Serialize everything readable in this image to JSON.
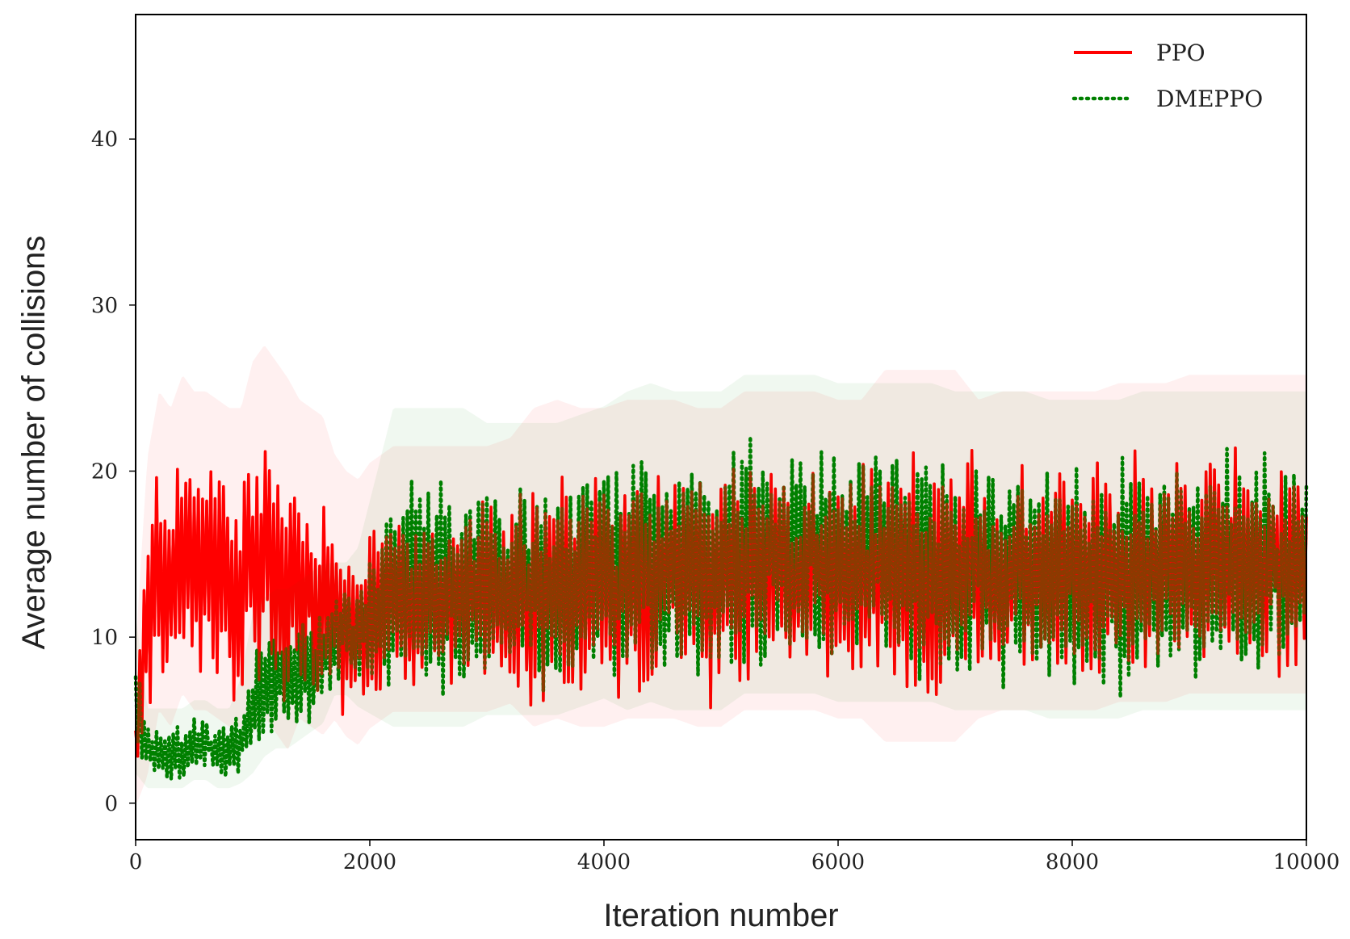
{
  "chart_data": {
    "type": "line",
    "title": "",
    "xlabel": "Iteration number",
    "ylabel": "Average number of collisions",
    "xlim": [
      0,
      10000
    ],
    "ylim": [
      -2.2,
      47.5
    ],
    "xticks": [
      0,
      2000,
      4000,
      6000,
      8000,
      10000
    ],
    "yticks": [
      0,
      10,
      20,
      30,
      40
    ],
    "grid": false,
    "legend": "top-right",
    "series": [
      {
        "name": "PPO",
        "color": "#ff0000",
        "style": "solid",
        "x": [
          0,
          100,
          200,
          300,
          400,
          500,
          600,
          700,
          800,
          900,
          1000,
          1100,
          1200,
          1300,
          1400,
          1500,
          1600,
          1700,
          1800,
          1900,
          2000,
          2200,
          2400,
          2600,
          2800,
          3000,
          3200,
          3400,
          3600,
          3800,
          4000,
          4200,
          4400,
          4600,
          4800,
          5000,
          5200,
          5400,
          5600,
          5800,
          6000,
          6200,
          6400,
          6600,
          6800,
          7000,
          7200,
          7400,
          7600,
          7800,
          8000,
          8200,
          8400,
          8600,
          8800,
          9000,
          9200,
          9400,
          9600,
          9800,
          10000
        ],
        "y": [
          4,
          10,
          14,
          13,
          15,
          14,
          14,
          13.5,
          13,
          13,
          14,
          15,
          14,
          13,
          13.5,
          13,
          12.5,
          12,
          11,
          10.5,
          11.5,
          12.5,
          12.5,
          12.5,
          12.5,
          12.5,
          13,
          13,
          13.5,
          13,
          13,
          13.5,
          13.5,
          13.5,
          13,
          13,
          14,
          14,
          14,
          14,
          13.5,
          13.5,
          13.5,
          13.5,
          13.5,
          13.5,
          13.5,
          14,
          14,
          14,
          14,
          14,
          14.5,
          14.5,
          14.5,
          15,
          15,
          15,
          15,
          15,
          15
        ],
        "amplitude": [
          3,
          6,
          6,
          6,
          6,
          6,
          6,
          6,
          6,
          6,
          7,
          7,
          7,
          7,
          6,
          6,
          6,
          5,
          5,
          5,
          5,
          5,
          5,
          5,
          5,
          5,
          5,
          6,
          6,
          6,
          6,
          6,
          6,
          6,
          6,
          6,
          6,
          6,
          6,
          6,
          6,
          6,
          7,
          7,
          7,
          7,
          6,
          6,
          6,
          6,
          6,
          6,
          6,
          6,
          6,
          6,
          6,
          6,
          6,
          6,
          6
        ]
      },
      {
        "name": "DMEPPO",
        "color": "#008000",
        "style": "dotted",
        "x": [
          0,
          100,
          200,
          300,
          400,
          500,
          600,
          700,
          800,
          900,
          1000,
          1100,
          1200,
          1300,
          1400,
          1500,
          1600,
          1700,
          1800,
          1900,
          2000,
          2200,
          2400,
          2600,
          2800,
          3000,
          3200,
          3400,
          3600,
          3800,
          4000,
          4200,
          4400,
          4600,
          4800,
          5000,
          5200,
          5400,
          5600,
          5800,
          6000,
          6200,
          6400,
          6600,
          6800,
          7000,
          7200,
          7400,
          7600,
          7800,
          8000,
          8200,
          8400,
          8600,
          8800,
          9000,
          9200,
          9400,
          9600,
          9800,
          10000
        ],
        "y": [
          6,
          3,
          3,
          3,
          3,
          3.5,
          3.5,
          3,
          3,
          4,
          6,
          7,
          7.5,
          7.5,
          8,
          8.5,
          9,
          10,
          10,
          10,
          11,
          13,
          13,
          13,
          13,
          13,
          13,
          13,
          13,
          13.5,
          14,
          14,
          14.5,
          14,
          14,
          14,
          15,
          15,
          15,
          15,
          14.5,
          14.5,
          14.5,
          14.5,
          14.5,
          14,
          14,
          14,
          14,
          13.5,
          13.5,
          13.5,
          13.5,
          14,
          14,
          14,
          14,
          14,
          14,
          14,
          14
        ],
        "amplitude": [
          3,
          1.5,
          1.5,
          1.5,
          1.5,
          1.5,
          1.5,
          1.5,
          1.5,
          2,
          3,
          3,
          3,
          3,
          3,
          3,
          3,
          2.5,
          2.5,
          3,
          4,
          6,
          6,
          6,
          6,
          5.5,
          5.5,
          5.5,
          5.5,
          5.5,
          5.5,
          6,
          6,
          6,
          6,
          6,
          6,
          6,
          6,
          6,
          6,
          6,
          6,
          6,
          6,
          6,
          6,
          6,
          6,
          6,
          6,
          6,
          6,
          6,
          6,
          6,
          6,
          6,
          6,
          6,
          6
        ]
      }
    ]
  }
}
